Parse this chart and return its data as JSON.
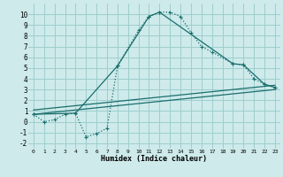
{
  "xlabel": "Humidex (Indice chaleur)",
  "background_color": "#ceeaea",
  "grid_color": "#9ecece",
  "line_color": "#1a6e6e",
  "xlim": [
    -0.5,
    23.5
  ],
  "ylim": [
    -2.5,
    11.0
  ],
  "xticks": [
    0,
    1,
    2,
    3,
    4,
    5,
    6,
    7,
    8,
    9,
    10,
    11,
    12,
    13,
    14,
    15,
    16,
    17,
    18,
    19,
    20,
    21,
    22,
    23
  ],
  "yticks": [
    -2,
    -1,
    0,
    1,
    2,
    3,
    4,
    5,
    6,
    7,
    8,
    9,
    10
  ],
  "series1_x": [
    0,
    1,
    2,
    3,
    4,
    5,
    6,
    7,
    8,
    10,
    11,
    12,
    13,
    14,
    15,
    16,
    17,
    19,
    20,
    21,
    22,
    23
  ],
  "series1_y": [
    0.7,
    0.0,
    0.2,
    0.7,
    0.8,
    -1.4,
    -1.1,
    -0.6,
    5.2,
    8.5,
    9.8,
    10.2,
    10.2,
    9.8,
    8.3,
    7.0,
    6.5,
    5.4,
    5.3,
    4.0,
    3.5,
    3.2
  ],
  "series2_x": [
    0,
    4,
    8,
    11,
    12,
    19,
    20,
    22,
    23
  ],
  "series2_y": [
    0.7,
    0.8,
    5.2,
    9.8,
    10.2,
    5.4,
    5.3,
    3.5,
    3.2
  ],
  "series3_x": [
    0,
    23
  ],
  "series3_y": [
    0.7,
    3.2
  ],
  "series4_x": [
    0,
    23
  ],
  "series4_y": [
    0.7,
    3.2
  ]
}
